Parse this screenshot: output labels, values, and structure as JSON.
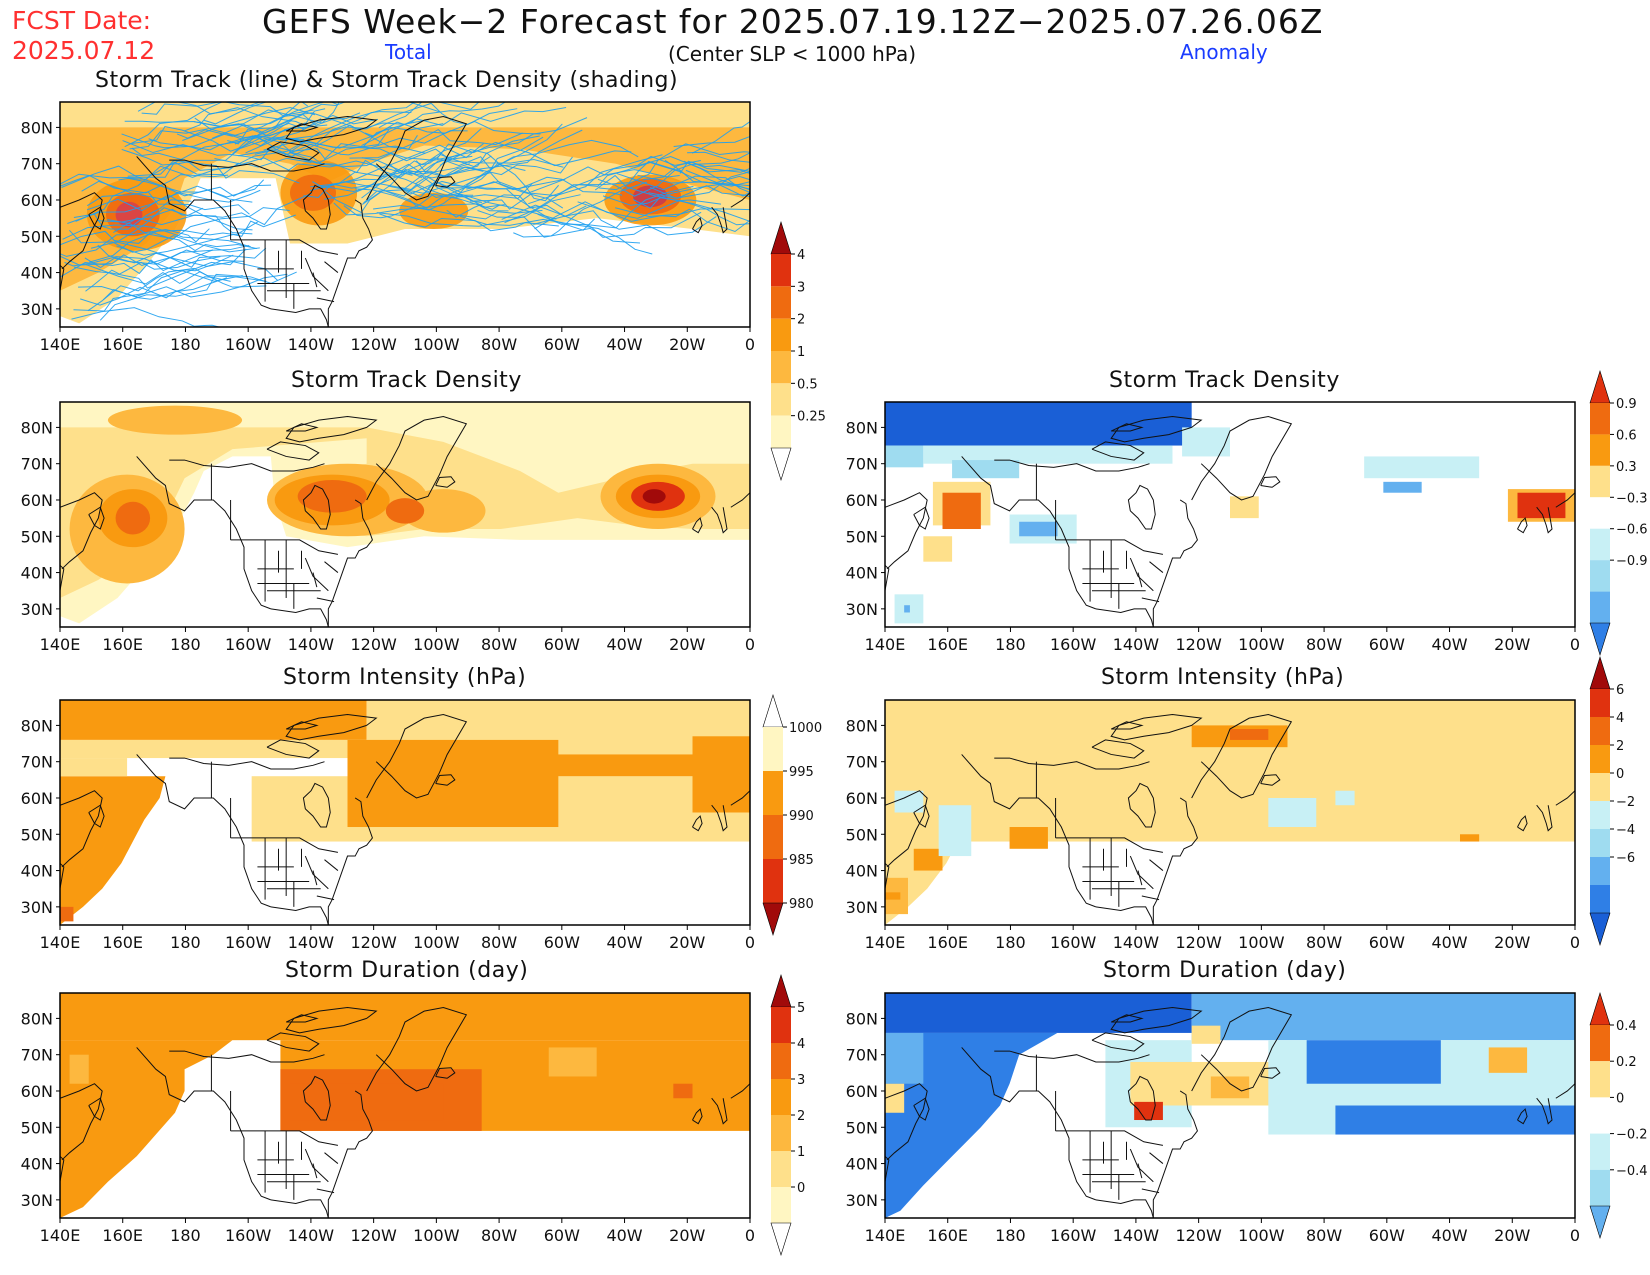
{
  "header": {
    "fcst_label": "FCST Date:",
    "fcst_date": "2025.07.12",
    "title": "GEFS Week−2 Forecast for 2025.07.19.12Z−2025.07.26.06Z",
    "total_label": "Total",
    "criteria": "(Center SLP < 1000 hPa)",
    "anomaly_label": "Anomaly"
  },
  "axes": {
    "lon_labels": [
      "140E",
      "160E",
      "180",
      "160W",
      "140W",
      "120W",
      "100W",
      "80W",
      "60W",
      "40W",
      "20W",
      "0"
    ],
    "lat_labels": [
      "80N",
      "70N",
      "60N",
      "50N",
      "40N",
      "30N"
    ]
  },
  "colors": {
    "warm": [
      "#fff6c2",
      "#fee08b",
      "#fdb83f",
      "#f99a10",
      "#ef6b10",
      "#e0320f",
      "#a10a0a"
    ],
    "cool": [
      "#c8f0f5",
      "#9fdcf0",
      "#63b0ef",
      "#2f7fe6",
      "#1a5fd6"
    ],
    "track_line": "#1ea0f0"
  },
  "panels": {
    "track_total": {
      "title": "Storm Track (line) & Storm Track Density (shading)"
    },
    "density_total": {
      "title": "Storm Track Density"
    },
    "density_anom": {
      "title": "Storm Track Density"
    },
    "intensity_total": {
      "title": "Storm Intensity (hPa)"
    },
    "intensity_anom": {
      "title": "Storm Intensity (hPa)"
    },
    "duration_total": {
      "title": "Storm Duration (day)"
    },
    "duration_anom": {
      "title": "Storm Duration (day)"
    }
  },
  "colorbars": {
    "density_total": [
      "4",
      "3",
      "2",
      "1",
      "0.5",
      "0.25"
    ],
    "density_anom": [
      "0.9",
      "0.6",
      "0.3",
      "−0.3",
      "−0.6",
      "−0.9"
    ],
    "intensity_total": [
      "1000",
      "995",
      "990",
      "985",
      "980"
    ],
    "intensity_anom": [
      "6",
      "4",
      "2",
      "0",
      "−2",
      "−4",
      "−6"
    ],
    "duration_total": [
      "5",
      "4",
      "3",
      "2",
      "1",
      "0"
    ],
    "duration_anom": [
      "0.4",
      "0.2",
      "0",
      "−0.2",
      "−0.4"
    ]
  }
}
